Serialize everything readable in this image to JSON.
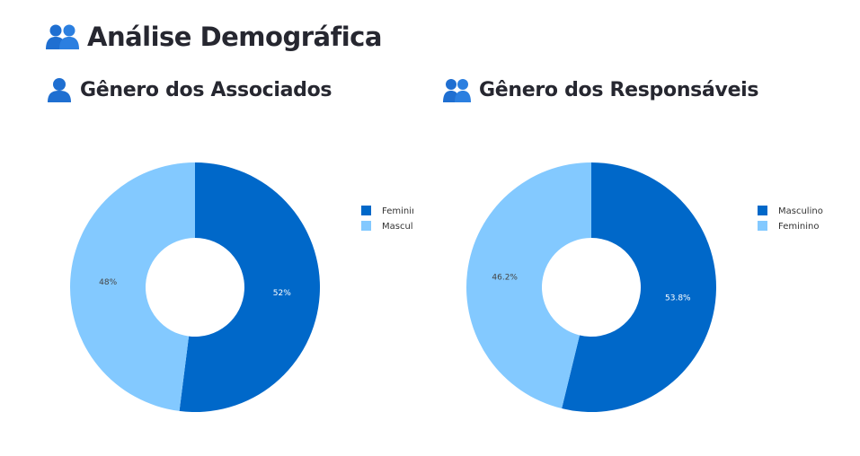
{
  "page": {
    "title": "Análise Demográfica",
    "title_icon": "people-icon"
  },
  "colors": {
    "dark_blue": "#0068c9",
    "light_blue": "#83c9ff",
    "text": "#262730",
    "icon_blue": "#1f6fd1"
  },
  "chart_data": [
    {
      "type": "pie",
      "title": "Gênero dos Associados",
      "title_icon": "person-icon",
      "hole": true,
      "legend_position": "top-right",
      "slices": [
        {
          "label": "Feminino",
          "value": 52,
          "value_label": "52%",
          "color": "#0068c9"
        },
        {
          "label": "Masculino",
          "value": 48,
          "value_label": "48%",
          "color": "#83c9ff"
        }
      ]
    },
    {
      "type": "pie",
      "title": "Gênero dos Responsáveis",
      "title_icon": "people-icon",
      "hole": true,
      "legend_position": "top-right",
      "slices": [
        {
          "label": "Masculino",
          "value": 53.8,
          "value_label": "53.8%",
          "color": "#0068c9"
        },
        {
          "label": "Feminino",
          "value": 46.2,
          "value_label": "46.2%",
          "color": "#83c9ff"
        }
      ]
    }
  ]
}
